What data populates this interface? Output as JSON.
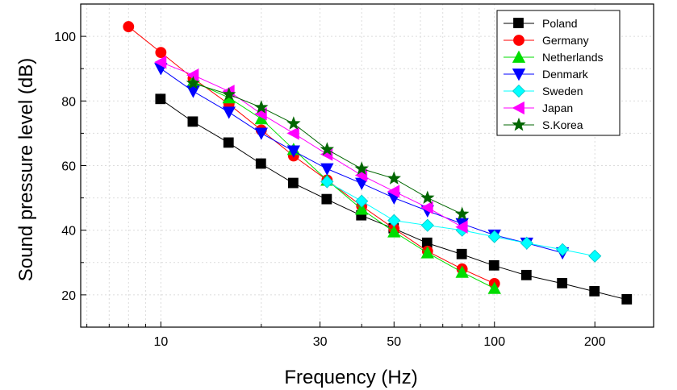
{
  "chart_data": {
    "type": "line",
    "title": "",
    "xlabel": "Frequency (Hz)",
    "ylabel": "Sound pressure level (dB)",
    "xscale": "log",
    "xlim": [
      5.75,
      300
    ],
    "ylim": [
      10,
      110
    ],
    "xticks": [
      10,
      30,
      50,
      100,
      200
    ],
    "xtick_labels": [
      "10",
      "30",
      "50",
      "100",
      "200"
    ],
    "yticks": [
      20,
      40,
      60,
      80,
      100
    ],
    "ytick_labels": [
      "20",
      "40",
      "60",
      "80",
      "100"
    ],
    "grid": true,
    "legend_position": "top-right",
    "series": [
      {
        "name": "Poland",
        "color": "#000000",
        "marker": "square",
        "x": [
          10,
          12.5,
          16,
          20,
          25,
          31.5,
          40,
          50,
          63,
          80,
          100,
          125,
          160,
          200,
          250
        ],
        "y": [
          80.5,
          73.5,
          67,
          60.5,
          54.5,
          49.5,
          44.5,
          40.5,
          36,
          32.5,
          29,
          26,
          23.5,
          21,
          18.5
        ]
      },
      {
        "name": "Germany",
        "color": "#ff0000",
        "marker": "circle",
        "x": [
          8,
          10,
          12.5,
          16,
          20,
          25,
          31.5,
          40,
          50,
          63,
          80,
          100
        ],
        "y": [
          103,
          95,
          87,
          79,
          71,
          63,
          55.5,
          47.5,
          40.5,
          33.5,
          28,
          23.5
        ]
      },
      {
        "name": "Netherlands",
        "color": "#00dd00",
        "marker": "triangle-up",
        "x": [
          12.5,
          16,
          20,
          25,
          31.5,
          40,
          50,
          63,
          80,
          100
        ],
        "y": [
          86,
          81,
          74.5,
          65,
          55.5,
          46.5,
          39.5,
          33,
          27,
          22
        ]
      },
      {
        "name": "Denmark",
        "color": "#0000ff",
        "marker": "triangle-down",
        "x": [
          10,
          12.5,
          16,
          20,
          25,
          31.5,
          40,
          50,
          63,
          80,
          100,
          125,
          160
        ],
        "y": [
          90,
          83,
          76.5,
          70,
          64.5,
          59,
          54.5,
          50,
          46,
          42,
          38.5,
          36,
          33
        ]
      },
      {
        "name": "Sweden",
        "color": "#00ffff",
        "marker": "diamond",
        "x": [
          31.5,
          40,
          50,
          63,
          80,
          100,
          125,
          160,
          200
        ],
        "y": [
          55,
          49,
          43,
          41.5,
          40,
          38,
          36,
          34,
          32
        ]
      },
      {
        "name": "Japan",
        "color": "#ff00ff",
        "marker": "triangle-left",
        "x": [
          10,
          12.5,
          16,
          20,
          25,
          31.5,
          40,
          50,
          63,
          80
        ],
        "y": [
          92,
          88,
          83,
          76,
          70,
          63.5,
          57,
          52,
          47,
          41
        ]
      },
      {
        "name": "S.Korea",
        "color": "#006600",
        "marker": "star",
        "x": [
          12.5,
          16,
          20,
          25,
          31.5,
          40,
          50,
          63,
          80
        ],
        "y": [
          85.5,
          82,
          78,
          73,
          65,
          59,
          56,
          50,
          45
        ]
      }
    ]
  }
}
